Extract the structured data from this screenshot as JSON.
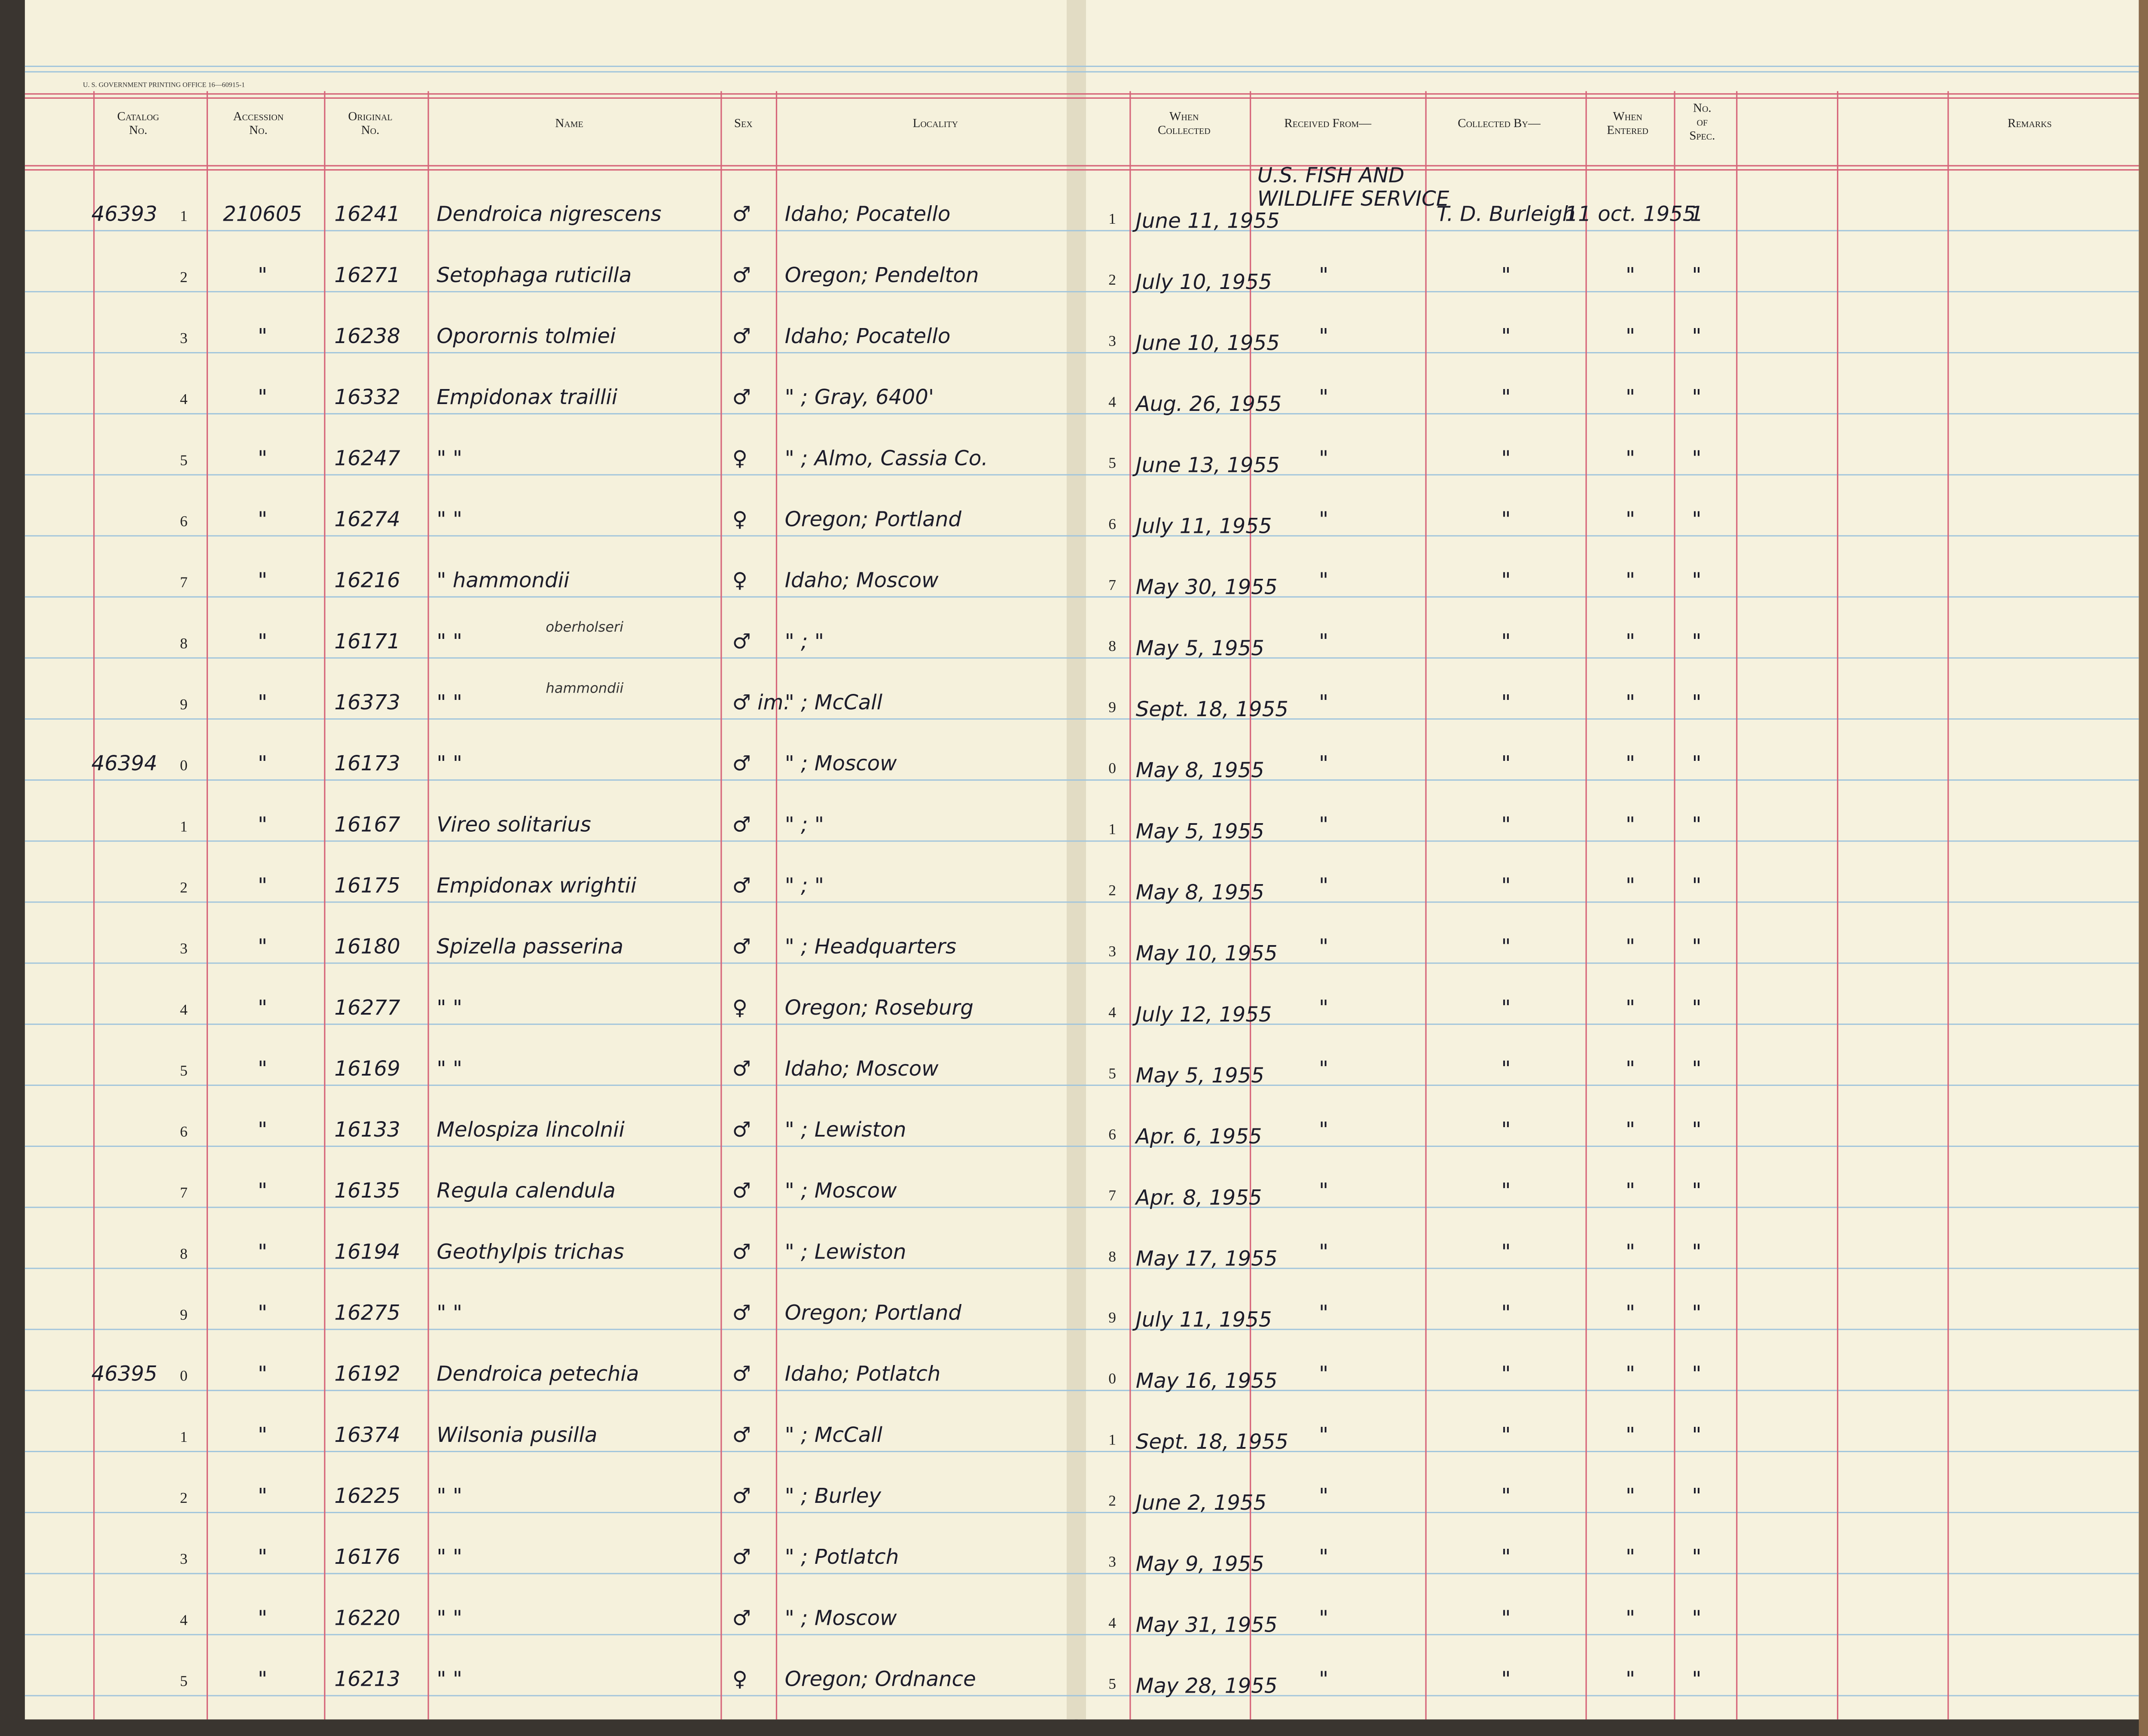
{
  "header": {
    "printer": "U. S. GOVERNMENT PRINTING OFFICE   16—60915-1",
    "columns": {
      "catalog": "Catalog No.",
      "accession": "Accession No.",
      "original": "Original No.",
      "name": "Name",
      "sex": "Sex",
      "locality": "Locality",
      "collected": "When Collected",
      "received": "Received From—",
      "collector": "Collected By—",
      "entered": "When Entered",
      "spec": "No. of Spec.",
      "remarks": "Remarks"
    }
  },
  "table": {
    "rows": [
      {
        "cat": "46393",
        "n": "1",
        "acc": "210605",
        "orig": "16241",
        "name": "Dendroica nigrescens",
        "sex": "♂",
        "loc": "Idaho; Pocatello",
        "date": "June 11, 1955",
        "recv": [
          "U.S. FISH AND",
          "WILDLIFE SERVICE"
        ],
        "coll": "T. D. Burleigh",
        "ent": "11 oct. 1955",
        "spec": "1"
      },
      {
        "n": "2",
        "acc": "\"",
        "orig": "16271",
        "name": "Setophaga ruticilla",
        "sex": "♂",
        "loc": "Oregon; Pendelton",
        "date": "July 10, 1955",
        "recv": [
          "\""
        ],
        "coll": "\"",
        "ent": "\"",
        "spec": "\""
      },
      {
        "n": "3",
        "acc": "\"",
        "orig": "16238",
        "name": "Oporornis tolmiei",
        "sex": "♂",
        "loc": "Idaho; Pocatello",
        "date": "June 10, 1955",
        "recv": [
          "\""
        ],
        "coll": "\"",
        "ent": "\"",
        "spec": "\""
      },
      {
        "n": "4",
        "acc": "\"",
        "orig": "16332",
        "name": "Empidonax traillii",
        "sex": "♂",
        "loc": "\" ; Gray, 6400'",
        "date": "Aug. 26, 1955",
        "recv": [
          "\""
        ],
        "coll": "\"",
        "ent": "\"",
        "spec": "\""
      },
      {
        "n": "5",
        "acc": "\"",
        "orig": "16247",
        "name": "\"      \"",
        "sex": "♀",
        "loc": "\" ; Almo, Cassia Co.",
        "date": "June 13, 1955",
        "recv": [
          "\""
        ],
        "coll": "\"",
        "ent": "\"",
        "spec": "\""
      },
      {
        "n": "6",
        "acc": "\"",
        "orig": "16274",
        "name": "\"      \"",
        "sex": "♀",
        "loc": "Oregon; Portland",
        "date": "July 11, 1955",
        "recv": [
          "\""
        ],
        "coll": "\"",
        "ent": "\"",
        "spec": "\""
      },
      {
        "n": "7",
        "acc": "\"",
        "orig": "16216",
        "name": "\"   hammondii",
        "sex": "♀",
        "loc": "Idaho; Moscow",
        "date": "May 30, 1955",
        "recv": [
          "\""
        ],
        "coll": "\"",
        "ent": "\"",
        "spec": "\""
      },
      {
        "n": "8",
        "acc": "\"",
        "orig": "16171",
        "name": "\"      \"",
        "note": "oberholseri",
        "sex": "♂",
        "loc": "\" ; \"",
        "date": "May 5, 1955",
        "recv": [
          "\""
        ],
        "coll": "\"",
        "ent": "\"",
        "spec": "\""
      },
      {
        "n": "9",
        "acc": "\"",
        "orig": "16373",
        "name": "\"      \"",
        "note": "hammondii",
        "sex": "♂ im.",
        "loc": "\" ; McCall",
        "date": "Sept. 18, 1955",
        "recv": [
          "\""
        ],
        "coll": "\"",
        "ent": "\"",
        "spec": "\""
      },
      {
        "cat": "46394",
        "n": "0",
        "acc": "\"",
        "orig": "16173",
        "name": "\"      \"",
        "sex": "♂",
        "loc": "\" ; Moscow",
        "date": "May 8, 1955",
        "recv": [
          "\""
        ],
        "coll": "\"",
        "ent": "\"",
        "spec": "\""
      },
      {
        "n": "1",
        "acc": "\"",
        "orig": "16167",
        "name": "Vireo solitarius",
        "sex": "♂",
        "loc": "\" ; \"",
        "date": "May 5, 1955",
        "recv": [
          "\""
        ],
        "coll": "\"",
        "ent": "\"",
        "spec": "\""
      },
      {
        "n": "2",
        "acc": "\"",
        "orig": "16175",
        "name": "Empidonax wrightii",
        "sex": "♂",
        "loc": "\" ; \"",
        "date": "May 8, 1955",
        "recv": [
          "\""
        ],
        "coll": "\"",
        "ent": "\"",
        "spec": "\""
      },
      {
        "n": "3",
        "acc": "\"",
        "orig": "16180",
        "name": "Spizella passerina",
        "sex": "♂",
        "loc": "\" ; Headquarters",
        "date": "May 10, 1955",
        "recv": [
          "\""
        ],
        "coll": "\"",
        "ent": "\"",
        "spec": "\""
      },
      {
        "n": "4",
        "acc": "\"",
        "orig": "16277",
        "name": "\"      \"",
        "sex": "♀",
        "loc": "Oregon; Roseburg",
        "date": "July 12, 1955",
        "recv": [
          "\""
        ],
        "coll": "\"",
        "ent": "\"",
        "spec": "\""
      },
      {
        "n": "5",
        "acc": "\"",
        "orig": "16169",
        "name": "\"      \"",
        "sex": "♂",
        "loc": "Idaho; Moscow",
        "date": "May 5, 1955",
        "recv": [
          "\""
        ],
        "coll": "\"",
        "ent": "\"",
        "spec": "\""
      },
      {
        "n": "6",
        "acc": "\"",
        "orig": "16133",
        "name": "Melospiza lincolnii",
        "sex": "♂",
        "loc": "\" ; Lewiston",
        "date": "Apr. 6, 1955",
        "recv": [
          "\""
        ],
        "coll": "\"",
        "ent": "\"",
        "spec": "\""
      },
      {
        "n": "7",
        "acc": "\"",
        "orig": "16135",
        "name": "Regula calendula",
        "sex": "♂",
        "loc": "\" ; Moscow",
        "date": "Apr. 8, 1955",
        "recv": [
          "\""
        ],
        "coll": "\"",
        "ent": "\"",
        "spec": "\""
      },
      {
        "n": "8",
        "acc": "\"",
        "orig": "16194",
        "name": "Geothylpis trichas",
        "sex": "♂",
        "loc": "\" ; Lewiston",
        "date": "May 17, 1955",
        "recv": [
          "\""
        ],
        "coll": "\"",
        "ent": "\"",
        "spec": "\""
      },
      {
        "n": "9",
        "acc": "\"",
        "orig": "16275",
        "name": "\"      \"",
        "sex": "♂",
        "loc": "Oregon; Portland",
        "date": "July 11, 1955",
        "recv": [
          "\""
        ],
        "coll": "\"",
        "ent": "\"",
        "spec": "\""
      },
      {
        "cat": "46395",
        "n": "0",
        "acc": "\"",
        "orig": "16192",
        "name": "Dendroica petechia",
        "sex": "♂",
        "loc": "Idaho; Potlatch",
        "date": "May 16, 1955",
        "recv": [
          "\""
        ],
        "coll": "\"",
        "ent": "\"",
        "spec": "\""
      },
      {
        "n": "1",
        "acc": "\"",
        "orig": "16374",
        "name": "Wilsonia pusilla",
        "sex": "♂",
        "loc": "\" ; McCall",
        "date": "Sept. 18, 1955",
        "recv": [
          "\""
        ],
        "coll": "\"",
        "ent": "\"",
        "spec": "\""
      },
      {
        "n": "2",
        "acc": "\"",
        "orig": "16225",
        "name": "\"      \"",
        "sex": "♂",
        "loc": "\" ; Burley",
        "date": "June 2, 1955",
        "recv": [
          "\""
        ],
        "coll": "\"",
        "ent": "\"",
        "spec": "\""
      },
      {
        "n": "3",
        "acc": "\"",
        "orig": "16176",
        "name": "\"      \"",
        "sex": "♂",
        "loc": "\" ; Potlatch",
        "date": "May 9, 1955",
        "recv": [
          "\""
        ],
        "coll": "\"",
        "ent": "\"",
        "spec": "\""
      },
      {
        "n": "4",
        "acc": "\"",
        "orig": "16220",
        "name": "\"      \"",
        "sex": "♂",
        "loc": "\" ; Moscow",
        "date": "May 31, 1955",
        "recv": [
          "\""
        ],
        "coll": "\"",
        "ent": "\"",
        "spec": "\""
      },
      {
        "n": "5",
        "acc": "\"",
        "orig": "16213",
        "name": "\"      \"",
        "sex": "♀",
        "loc": "Oregon; Ordnance",
        "date": "May 28, 1955",
        "recv": [
          "\""
        ],
        "coll": "\"",
        "ent": "\"",
        "spec": "\""
      }
    ]
  }
}
